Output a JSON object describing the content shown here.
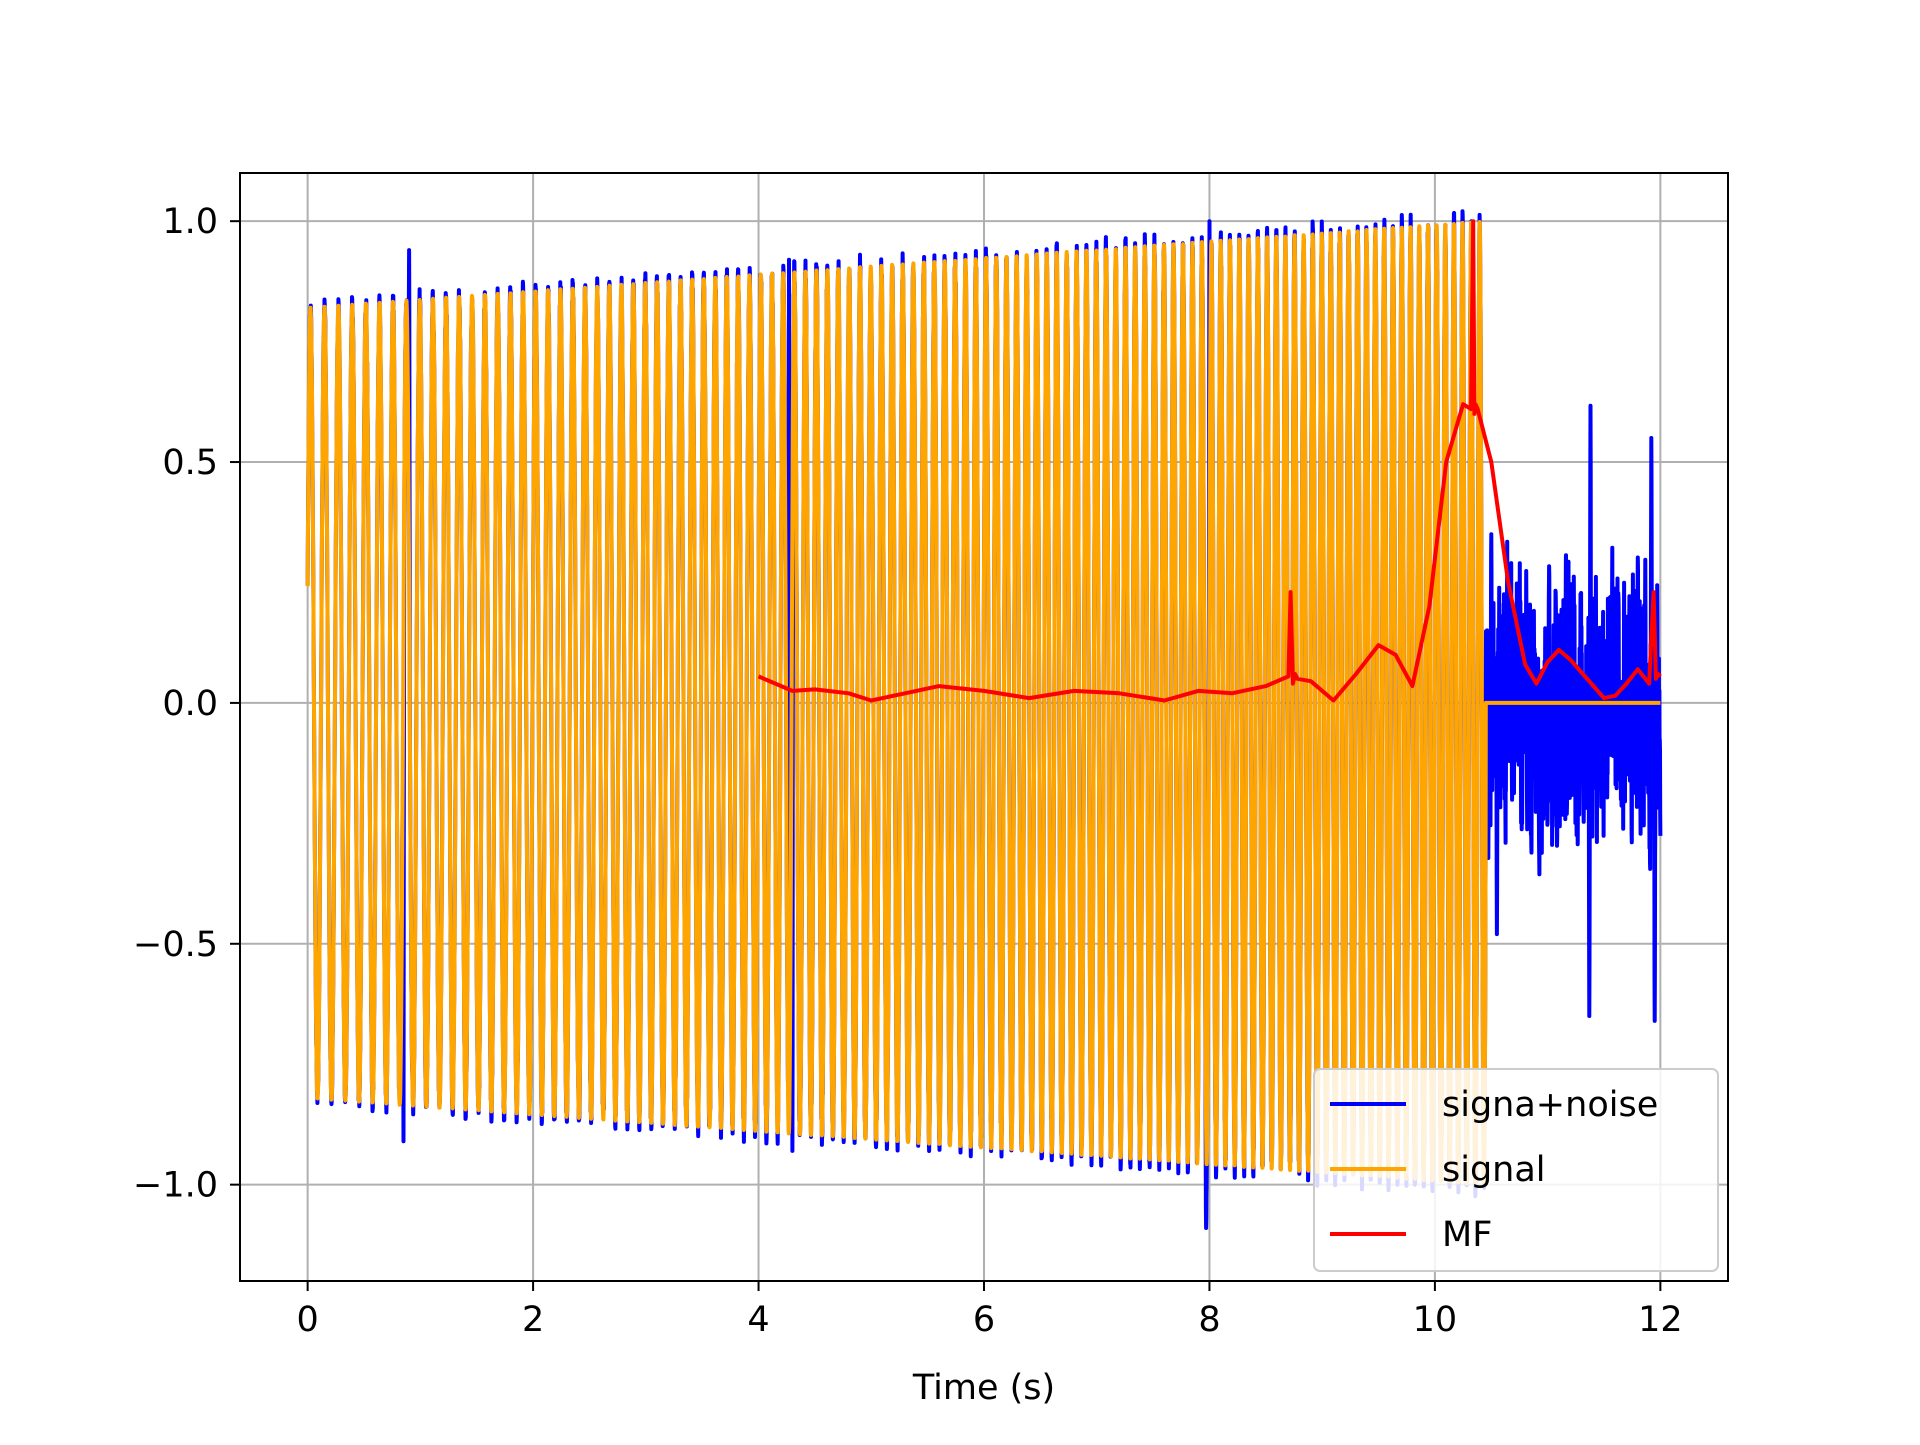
{
  "chart_data": {
    "type": "line",
    "title": "",
    "xlabel": "Time (s)",
    "ylabel": "",
    "xlim": [
      -0.6,
      12.6
    ],
    "ylim": [
      -1.2,
      1.1
    ],
    "xticks": [
      0,
      2,
      4,
      6,
      8,
      10,
      12
    ],
    "xtick_labels": [
      "0",
      "2",
      "4",
      "6",
      "8",
      "10",
      "12"
    ],
    "yticks": [
      1.0,
      0.5,
      0.0,
      -0.5,
      -1.0
    ],
    "ytick_labels": [
      "1.0",
      "0.5",
      "0.0",
      "−0.5",
      "−1.0"
    ],
    "grid": true,
    "legend_position": "lower-right",
    "series": [
      {
        "name": "signa+noise",
        "color": "#0000ff",
        "description_values": {
          "x_start": 0,
          "x_end": 12,
          "envelope_start": 0.82,
          "envelope_at_10_4": 1.0,
          "noise_only_after": 10.45,
          "noise_peaks": [
            [
              0.9,
              0.94
            ],
            [
              0.85,
              -0.91
            ],
            [
              4.27,
              0.92
            ],
            [
              4.3,
              -0.93
            ],
            [
              8.0,
              1.0
            ],
            [
              7.97,
              -1.09
            ],
            [
              11.38,
              0.62
            ],
            [
              11.37,
              -0.65
            ],
            [
              11.92,
              0.55
            ],
            [
              11.95,
              -0.66
            ],
            [
              10.5,
              0.35
            ],
            [
              10.55,
              -0.48
            ]
          ]
        }
      },
      {
        "name": "signal",
        "color": "#ffa500",
        "description_values": {
          "x_start": 0,
          "x_end": 10.45,
          "amplitude_start": 0.82,
          "amplitude_end": 1.0,
          "value_after_end": 0.0,
          "chirp_f0": 8.0,
          "chirp_rate": 0.25
        }
      },
      {
        "name": "MF",
        "color": "#ff0000",
        "x": [
          4.0,
          4.3,
          4.5,
          4.8,
          5.0,
          5.3,
          5.6,
          6.0,
          6.4,
          6.8,
          7.2,
          7.6,
          7.9,
          8.2,
          8.5,
          8.7,
          8.72,
          8.74,
          8.76,
          8.78,
          8.9,
          9.1,
          9.3,
          9.5,
          9.65,
          9.8,
          9.95,
          10.1,
          10.25,
          10.32,
          10.34,
          10.35,
          10.36,
          10.38,
          10.5,
          10.65,
          10.8,
          10.9,
          11.0,
          11.1,
          11.2,
          11.35,
          11.5,
          11.6,
          11.7,
          11.8,
          11.9,
          11.94,
          11.96,
          11.98,
          12.0
        ],
        "values": [
          0.055,
          0.025,
          0.028,
          0.02,
          0.005,
          0.02,
          0.035,
          0.025,
          0.01,
          0.025,
          0.02,
          0.005,
          0.025,
          0.02,
          0.035,
          0.055,
          0.23,
          0.04,
          0.06,
          0.05,
          0.045,
          0.005,
          0.06,
          0.12,
          0.1,
          0.035,
          0.2,
          0.5,
          0.62,
          0.61,
          1.0,
          0.6,
          0.62,
          0.61,
          0.5,
          0.25,
          0.08,
          0.04,
          0.085,
          0.11,
          0.09,
          0.05,
          0.01,
          0.015,
          0.04,
          0.07,
          0.04,
          0.23,
          0.05,
          0.06,
          0.055
        ]
      }
    ]
  }
}
